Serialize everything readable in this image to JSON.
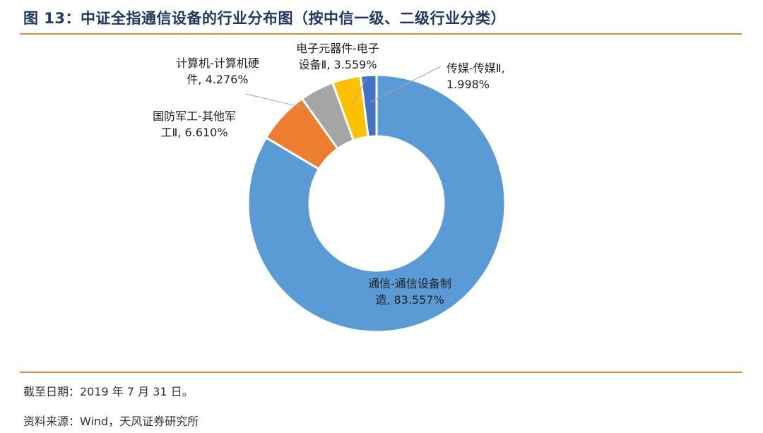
{
  "header": {
    "title": "图 13：中证全指通信设备的行业分布图（按中信一级、二级行业分类）"
  },
  "footer": {
    "date_note": "截至日期：2019 年 7 月 31 日。",
    "source_note": "资料来源：Wind，天风证券研究所"
  },
  "chart_data": {
    "type": "pie",
    "donut": true,
    "title": "图 13：中证全指通信设备的行业分布图（按中信一级、二级行业分类）",
    "unit": "%",
    "legend": "none",
    "slices": [
      {
        "label_lines": [
          "传媒-传媒Ⅱ,",
          "1.998%"
        ],
        "value": 1.998,
        "color": "#4472c4"
      },
      {
        "label_lines": [
          "通信-通信设备制",
          "造, 83.557%"
        ],
        "value": 83.557,
        "color": "#5b9bd5"
      },
      {
        "label_lines": [
          "国防军工-其他军",
          "工Ⅱ, 6.610%"
        ],
        "value": 6.61,
        "color": "#ed7d31"
      },
      {
        "label_lines": [
          "计算机-计算机硬",
          "件, 4.276%"
        ],
        "value": 4.276,
        "color": "#a5a5a5"
      },
      {
        "label_lines": [
          "电子元器件-电子",
          "设备Ⅱ, 3.559%"
        ],
        "value": 3.559,
        "color": "#ffc000"
      }
    ]
  }
}
